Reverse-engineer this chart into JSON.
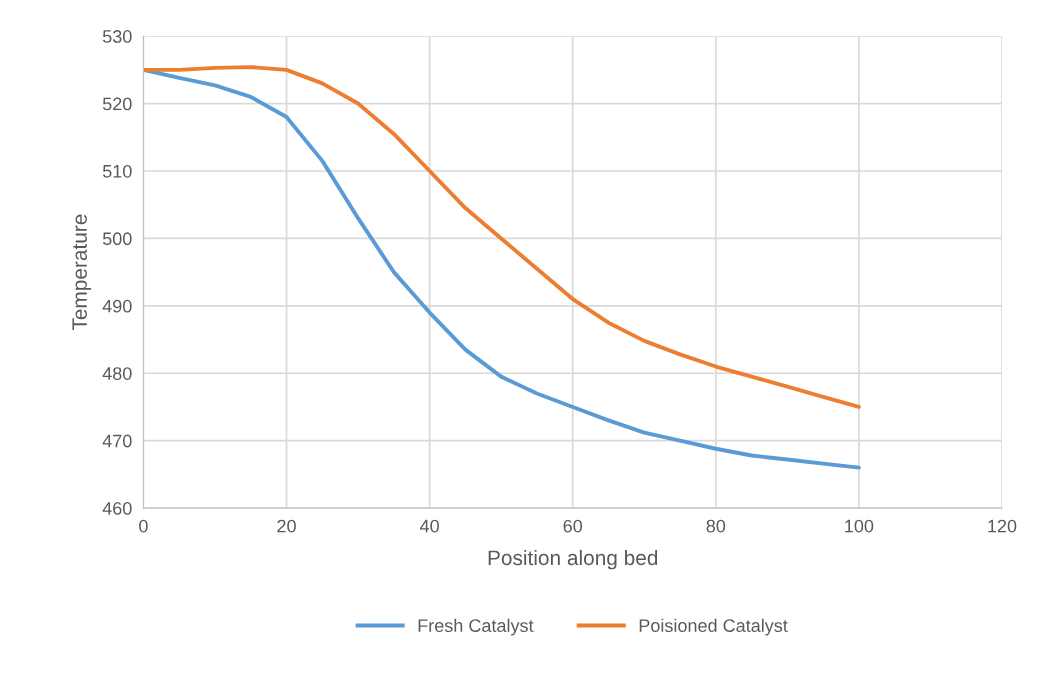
{
  "chart_data": {
    "type": "line",
    "xlabel": "Position along bed",
    "ylabel": "Temperature",
    "x": [
      0,
      5,
      10,
      15,
      20,
      25,
      30,
      35,
      40,
      45,
      50,
      55,
      60,
      65,
      70,
      75,
      80,
      85,
      90,
      95,
      100
    ],
    "series": [
      {
        "name": "Fresh Catalyst",
        "color": "#5b9bd5",
        "values": [
          525,
          523.8,
          522.7,
          521,
          518,
          511.5,
          503,
          495,
          489,
          483.5,
          479.5,
          477,
          475,
          473,
          471.2,
          470,
          468.8,
          467.8,
          467.2,
          466.6,
          466
        ]
      },
      {
        "name": "Poisioned Catalyst",
        "color": "#ed7d31",
        "values": [
          525,
          525,
          525.3,
          525.4,
          525,
          523,
          520,
          515.5,
          510,
          504.5,
          500,
          495.5,
          491,
          487.5,
          484.8,
          482.8,
          481,
          479.5,
          478,
          476.5,
          475
        ]
      }
    ],
    "xlim": [
      0,
      120
    ],
    "xticks": [
      0,
      20,
      40,
      60,
      80,
      100,
      120
    ],
    "ylim": [
      460,
      530
    ],
    "yticks": [
      460,
      470,
      480,
      490,
      500,
      510,
      520,
      530
    ],
    "grid": true,
    "legend": "bottom",
    "marker": "none",
    "line_style": "solid"
  }
}
